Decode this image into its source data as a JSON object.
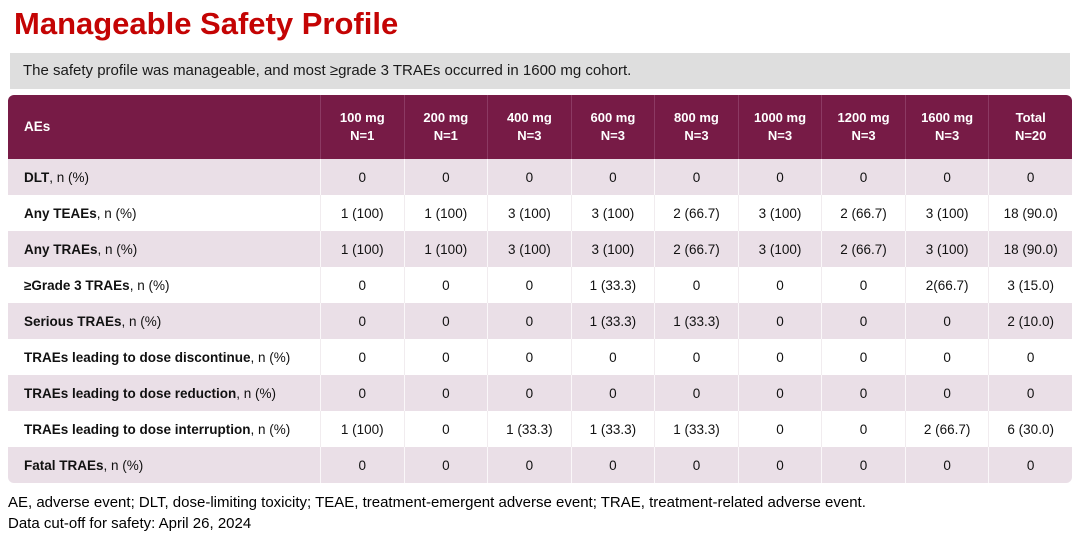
{
  "slide": {
    "title": "Manageable Safety Profile",
    "subtitle": "The safety profile was manageable, and most ≥grade 3 TRAEs occurred in 1600 mg cohort.",
    "footnote_abbreviations": "AE, adverse event; DLT, dose-limiting toxicity; TEAE, treatment-emergent adverse event; TRAE, treatment-related adverse event.",
    "footnote_cutoff": "Data cut-off for safety: April 26, 2024"
  },
  "colors": {
    "title_red": "#C40404",
    "header_maroon": "#771B46",
    "header_divider": "#8C3A63",
    "row_pink": "#EADFE7",
    "subtitle_gray": "#DEDEDE"
  },
  "table": {
    "header": {
      "label": "AEs",
      "columns": [
        {
          "dose": "100 mg",
          "n": "N=1"
        },
        {
          "dose": "200 mg",
          "n": "N=1"
        },
        {
          "dose": "400 mg",
          "n": "N=3"
        },
        {
          "dose": "600 mg",
          "n": "N=3"
        },
        {
          "dose": "800 mg",
          "n": "N=3"
        },
        {
          "dose": "1000 mg",
          "n": "N=3"
        },
        {
          "dose": "1200 mg",
          "n": "N=3"
        },
        {
          "dose": "1600 mg",
          "n": "N=3"
        },
        {
          "dose": "Total",
          "n": "N=20"
        }
      ]
    },
    "rows": [
      {
        "label_bold": "DLT",
        "label_rest": ", n (%)",
        "values": [
          "0",
          "0",
          "0",
          "0",
          "0",
          "0",
          "0",
          "0",
          "0"
        ]
      },
      {
        "label_bold": "Any TEAEs",
        "label_rest": ", n (%)",
        "values": [
          "1 (100)",
          "1 (100)",
          "3 (100)",
          "3 (100)",
          "2 (66.7)",
          "3 (100)",
          "2 (66.7)",
          "3 (100)",
          "18 (90.0)"
        ]
      },
      {
        "label_bold": "Any TRAEs",
        "label_rest": ", n (%)",
        "values": [
          "1 (100)",
          "1 (100)",
          "3 (100)",
          "3 (100)",
          "2 (66.7)",
          "3 (100)",
          "2 (66.7)",
          "3 (100)",
          "18 (90.0)"
        ]
      },
      {
        "label_bold": "≥Grade 3 TRAEs",
        "label_rest": ", n (%)",
        "values": [
          "0",
          "0",
          "0",
          "1 (33.3)",
          "0",
          "0",
          "0",
          "2(66.7)",
          "3 (15.0)"
        ]
      },
      {
        "label_bold": "Serious TRAEs",
        "label_rest": ", n (%)",
        "values": [
          "0",
          "0",
          "0",
          "1 (33.3)",
          "1 (33.3)",
          "0",
          "0",
          "0",
          "2 (10.0)"
        ]
      },
      {
        "label_bold": "TRAEs leading to dose discontinue",
        "label_rest": ", n (%)",
        "values": [
          "0",
          "0",
          "0",
          "0",
          "0",
          "0",
          "0",
          "0",
          "0"
        ]
      },
      {
        "label_bold": "TRAEs leading to dose reduction",
        "label_rest": ", n (%)",
        "values": [
          "0",
          "0",
          "0",
          "0",
          "0",
          "0",
          "0",
          "0",
          "0"
        ]
      },
      {
        "label_bold": "TRAEs leading to dose interruption",
        "label_rest": ", n (%)",
        "values": [
          "1 (100)",
          "0",
          "1 (33.3)",
          "1 (33.3)",
          "1 (33.3)",
          "0",
          "0",
          "2 (66.7)",
          "6 (30.0)"
        ]
      },
      {
        "label_bold": "Fatal TRAEs",
        "label_rest": ", n (%)",
        "values": [
          "0",
          "0",
          "0",
          "0",
          "0",
          "0",
          "0",
          "0",
          "0"
        ]
      }
    ]
  }
}
